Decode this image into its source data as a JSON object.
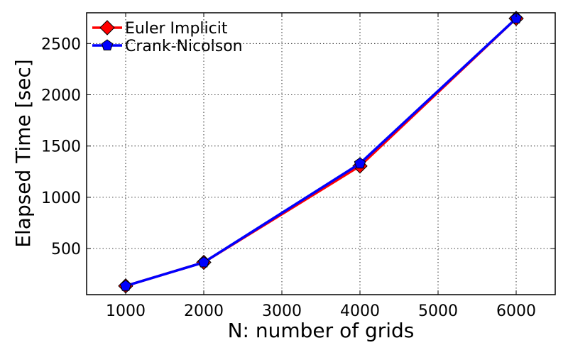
{
  "chart_data": {
    "type": "line",
    "title": "",
    "xlabel": "N: number of grids",
    "ylabel": "Elapsed Time [sec]",
    "xlim": [
      500,
      6500
    ],
    "ylim": [
      50,
      2800
    ],
    "xticks": [
      1000,
      2000,
      3000,
      4000,
      5000,
      6000
    ],
    "yticks": [
      500,
      1000,
      1500,
      2000,
      2500
    ],
    "grid": true,
    "legend_position": "top-left",
    "series": [
      {
        "name": "Euler Implicit",
        "color": "#ff0000",
        "marker": "diamond",
        "x": [
          1000,
          2000,
          4000,
          6000
        ],
        "y": [
          135,
          365,
          1305,
          2745
        ]
      },
      {
        "name": "Crank-Nicolson",
        "color": "#0000ff",
        "marker": "pentagon",
        "x": [
          1000,
          2000,
          4000,
          6000
        ],
        "y": [
          135,
          365,
          1330,
          2745
        ]
      }
    ]
  }
}
